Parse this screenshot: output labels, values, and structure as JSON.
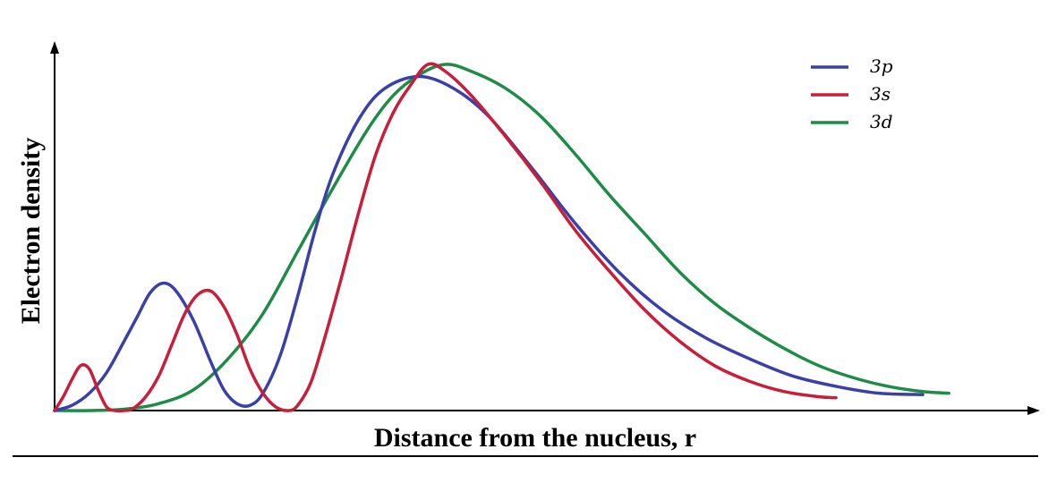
{
  "chart_data": {
    "type": "line",
    "title": "",
    "xlabel": "Distance from the nucleus, r",
    "ylabel": "Electron density",
    "xlim": [
      0,
      100
    ],
    "ylim": [
      0,
      100
    ],
    "grid": false,
    "legend_position": "top-right",
    "series": [
      {
        "name": "3p",
        "color": "#3b3fa8",
        "points": [
          [
            0,
            0
          ],
          [
            2,
            1.5
          ],
          [
            4,
            5
          ],
          [
            6,
            11
          ],
          [
            8,
            20
          ],
          [
            9.5,
            27
          ],
          [
            11,
            34
          ],
          [
            12.5,
            36.8
          ],
          [
            14,
            34.5
          ],
          [
            16,
            26
          ],
          [
            18,
            14
          ],
          [
            19.5,
            6
          ],
          [
            21,
            2
          ],
          [
            22.5,
            1.5
          ],
          [
            24,
            5
          ],
          [
            26,
            16
          ],
          [
            28,
            33
          ],
          [
            30,
            52
          ],
          [
            32,
            68
          ],
          [
            35,
            84
          ],
          [
            38,
            93
          ],
          [
            42,
            96.5
          ],
          [
            46,
            93
          ],
          [
            50,
            85
          ],
          [
            55,
            70
          ],
          [
            60,
            54
          ],
          [
            65,
            40
          ],
          [
            70,
            29
          ],
          [
            75,
            21
          ],
          [
            80,
            15
          ],
          [
            85,
            10
          ],
          [
            90,
            7
          ],
          [
            95,
            5
          ],
          [
            100,
            4.6
          ]
        ]
      },
      {
        "name": "3s",
        "color": "#c81e3a",
        "points": [
          [
            0,
            0
          ],
          [
            1,
            4
          ],
          [
            2,
            9
          ],
          [
            3,
            13
          ],
          [
            4,
            12
          ],
          [
            5,
            6
          ],
          [
            6,
            1
          ],
          [
            7,
            0
          ],
          [
            8,
            0
          ],
          [
            9,
            0.5
          ],
          [
            10.5,
            4
          ],
          [
            12,
            10
          ],
          [
            13.5,
            19
          ],
          [
            15,
            28
          ],
          [
            16.5,
            33.5
          ],
          [
            18,
            34.5
          ],
          [
            19.5,
            30
          ],
          [
            21,
            22
          ],
          [
            22.5,
            12
          ],
          [
            24,
            5
          ],
          [
            25.5,
            1
          ],
          [
            27,
            0
          ],
          [
            28,
            1.5
          ],
          [
            29.5,
            8
          ],
          [
            31,
            20
          ],
          [
            33,
            38
          ],
          [
            35,
            57
          ],
          [
            37,
            74
          ],
          [
            39,
            86
          ],
          [
            41,
            94
          ],
          [
            43,
            100
          ],
          [
            45,
            98
          ],
          [
            48,
            91
          ],
          [
            52,
            79
          ],
          [
            56,
            66
          ],
          [
            60,
            52
          ],
          [
            64,
            40
          ],
          [
            68,
            29
          ],
          [
            72,
            20
          ],
          [
            76,
            13
          ],
          [
            80,
            8.5
          ],
          [
            84,
            5.5
          ],
          [
            88,
            4
          ],
          [
            90,
            3.7
          ]
        ]
      },
      {
        "name": "3d",
        "color": "#1e8c47",
        "points": [
          [
            0,
            0
          ],
          [
            4,
            0
          ],
          [
            8,
            0.4
          ],
          [
            12,
            2
          ],
          [
            16,
            6
          ],
          [
            20,
            15
          ],
          [
            24,
            28
          ],
          [
            28,
            46
          ],
          [
            32,
            64
          ],
          [
            36,
            81
          ],
          [
            39,
            91
          ],
          [
            42,
            97
          ],
          [
            45,
            100
          ],
          [
            48,
            98
          ],
          [
            52,
            93
          ],
          [
            56,
            85
          ],
          [
            60,
            74
          ],
          [
            64,
            62
          ],
          [
            68,
            51
          ],
          [
            72,
            40
          ],
          [
            76,
            31
          ],
          [
            80,
            24
          ],
          [
            84,
            18
          ],
          [
            88,
            13
          ],
          [
            92,
            9.5
          ],
          [
            96,
            7
          ],
          [
            100,
            5.5
          ],
          [
            103,
            5
          ]
        ]
      }
    ]
  }
}
